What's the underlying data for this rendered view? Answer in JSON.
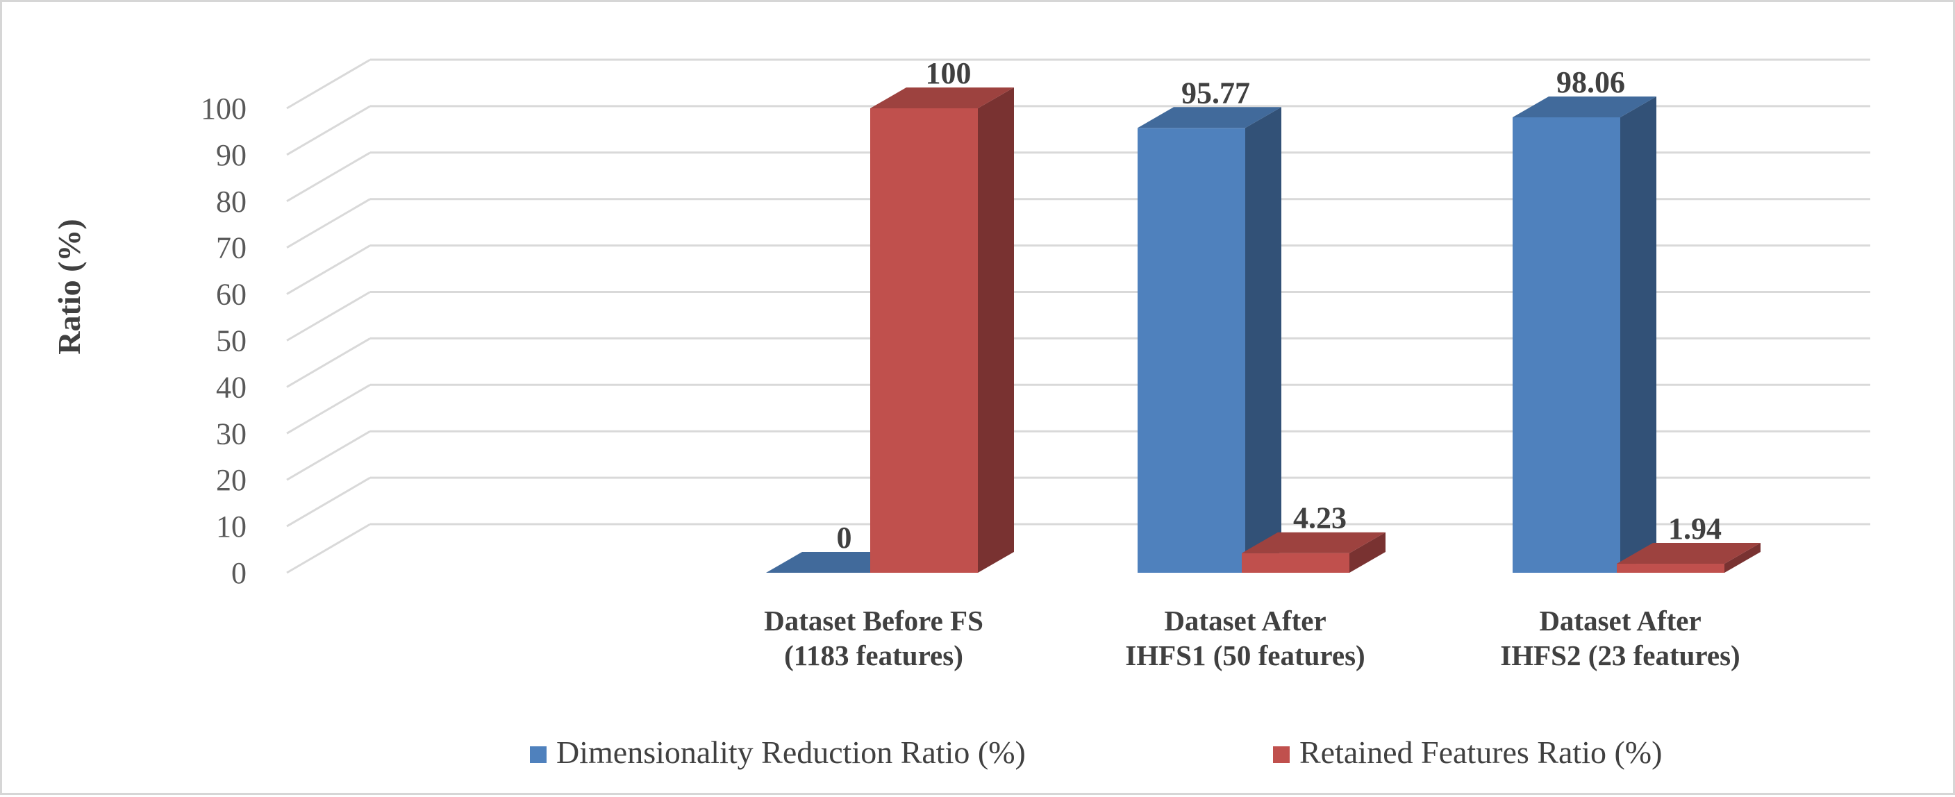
{
  "chart_data": {
    "type": "bar",
    "ylabel": "Ratio (%)",
    "ylim": [
      0,
      100
    ],
    "yticks": [
      0,
      10,
      20,
      30,
      40,
      50,
      60,
      70,
      80,
      90,
      100
    ],
    "grid": true,
    "legend_position": "bottom",
    "categories": [
      [
        "Dataset Before FS",
        "(1183 features)"
      ],
      [
        "Dataset After",
        "IHFS1 (50 features)"
      ],
      [
        "Dataset After",
        "IHFS2 (23 features)"
      ]
    ],
    "series": [
      {
        "name": "Dimensionality Reduction Ratio (%)",
        "values": [
          0,
          95.77,
          98.06
        ],
        "labels": [
          "0",
          "95.77",
          "98.06"
        ],
        "color": "#4f81bd"
      },
      {
        "name": "Retained Features Ratio (%)",
        "values": [
          100,
          4.23,
          1.94
        ],
        "labels": [
          "100",
          "4.23",
          "1.94"
        ],
        "color": "#c0504d"
      }
    ]
  }
}
